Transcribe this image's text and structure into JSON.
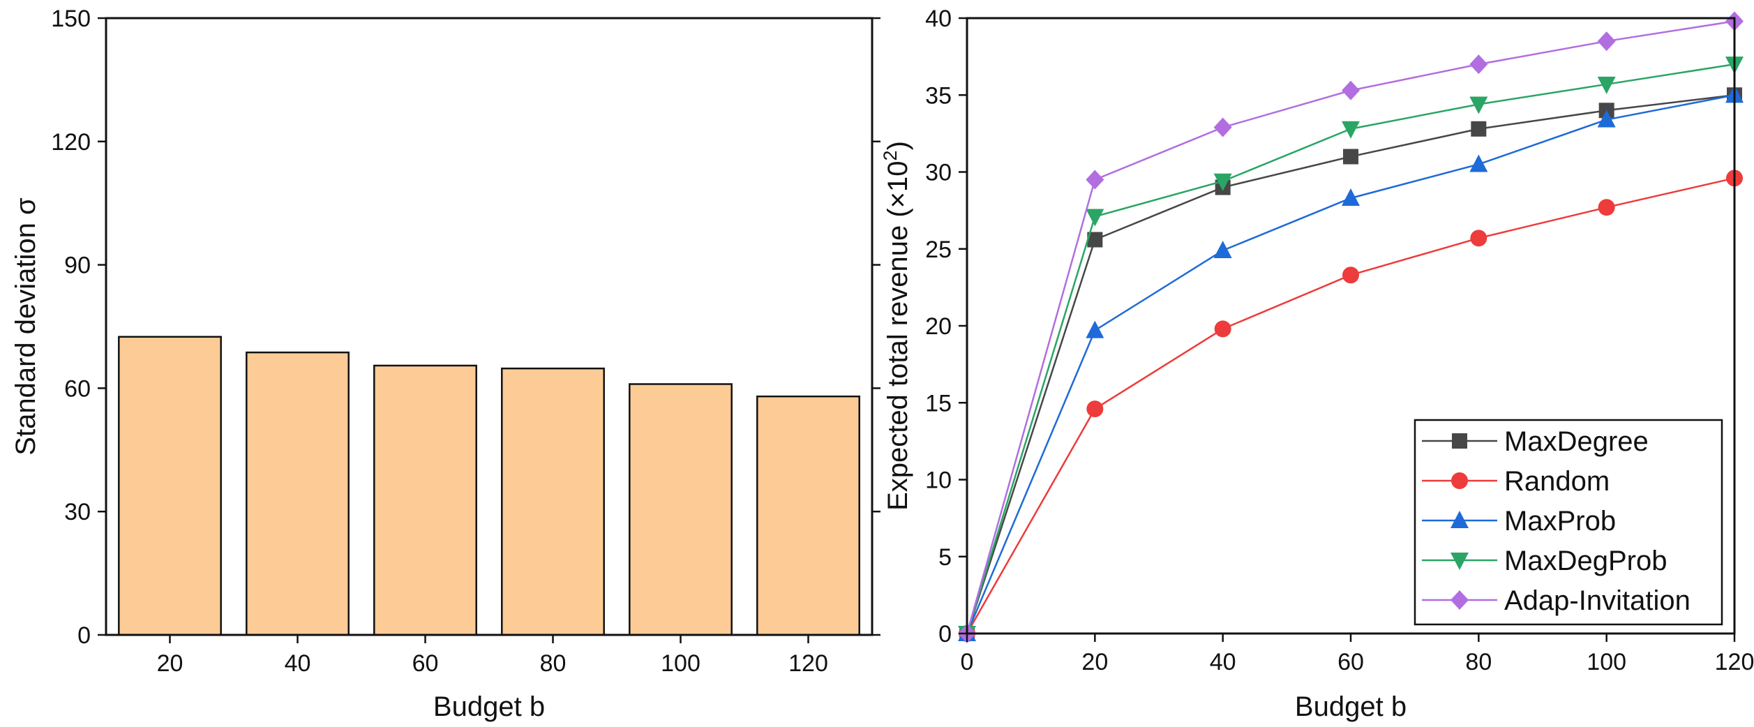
{
  "chart_data": [
    {
      "type": "bar",
      "title": "",
      "xlabel": "Budget b",
      "ylabel": "Standard deviation σ",
      "categories": [
        "20",
        "40",
        "60",
        "80",
        "100",
        "120"
      ],
      "values": [
        72.5,
        68.7,
        65.5,
        64.8,
        61.0,
        58.0
      ],
      "ylim": [
        0,
        150
      ],
      "yticks": [
        "0",
        "30",
        "60",
        "90",
        "120",
        "150"
      ],
      "grid": false,
      "colors": {
        "bar_fill": "#FDCC96",
        "bar_stroke": "#111111"
      }
    },
    {
      "type": "line",
      "title": "",
      "xlabel": "Budget b",
      "ylabel_main": "Expected total revenue (×10",
      "ylabel_exp": "2",
      "ylabel_close": ")",
      "x": [
        0,
        20,
        40,
        60,
        80,
        100,
        120
      ],
      "xlim": [
        0,
        120
      ],
      "ylim": [
        0,
        40
      ],
      "xticks": [
        "0",
        "20",
        "40",
        "60",
        "80",
        "100",
        "120"
      ],
      "yticks": [
        "0",
        "5",
        "10",
        "15",
        "20",
        "25",
        "30",
        "35",
        "40"
      ],
      "grid": false,
      "legend_position": "bottom-right",
      "series": [
        {
          "name": "MaxDegree",
          "marker": "square",
          "color": "#474747",
          "values": [
            0,
            25.6,
            29.0,
            31.0,
            32.8,
            34.0,
            35.0
          ]
        },
        {
          "name": "Random",
          "marker": "circle",
          "color": "#EE3B3B",
          "values": [
            0,
            14.6,
            19.8,
            23.3,
            25.7,
            27.7,
            29.6
          ]
        },
        {
          "name": "MaxProb",
          "marker": "triangle-up",
          "color": "#1E6AD8",
          "values": [
            0,
            19.7,
            24.9,
            28.3,
            30.5,
            33.4,
            35.0
          ]
        },
        {
          "name": "MaxDegProb",
          "marker": "triangle-down",
          "color": "#2AA565",
          "values": [
            0,
            27.1,
            29.4,
            32.8,
            34.4,
            35.7,
            37.0
          ]
        },
        {
          "name": "Adap-Invitation",
          "marker": "diamond",
          "color": "#B26EE0",
          "values": [
            0,
            29.5,
            32.9,
            35.3,
            37.0,
            38.5,
            39.8
          ]
        }
      ]
    }
  ]
}
